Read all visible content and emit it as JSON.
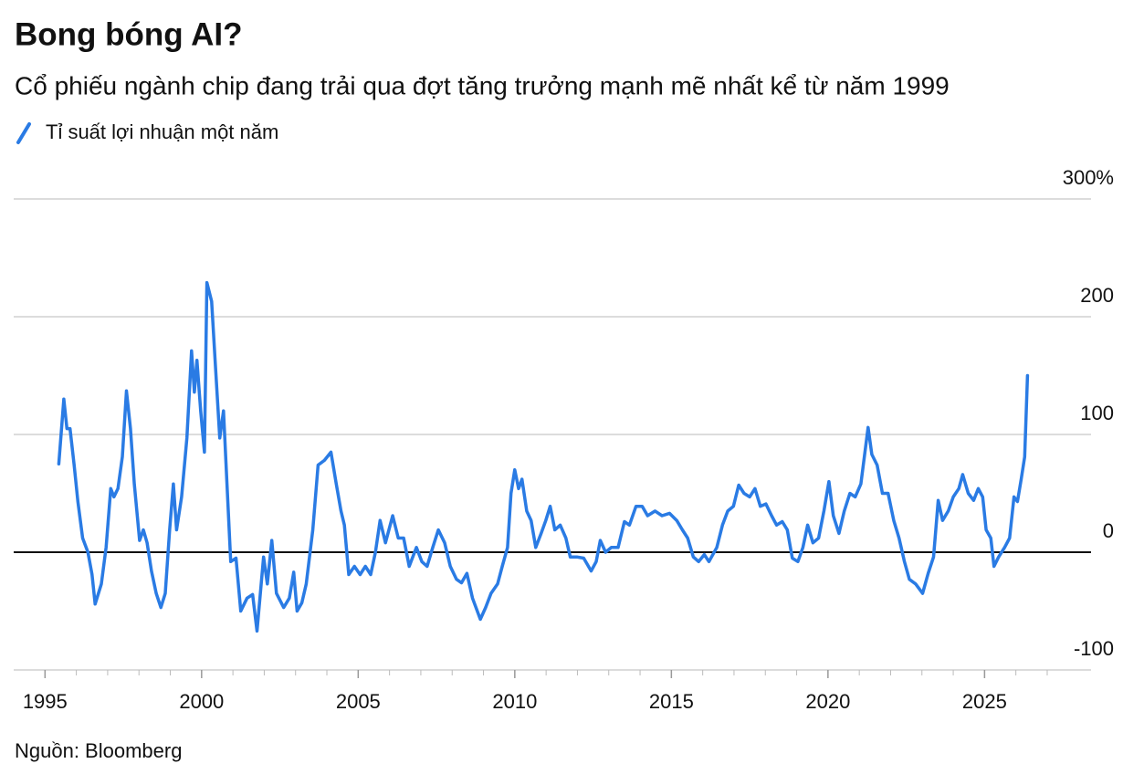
{
  "chart_data": {
    "type": "line",
    "title": "Bong bóng AI?",
    "subtitle": "Cổ phiếu ngành chip đang trải qua đợt tăng trưởng mạnh mẽ nhất kể từ năm 1999",
    "source": "Nguồn: Bloomberg",
    "x": [
      1995.44,
      1995.6,
      1995.7,
      1995.8,
      1995.93,
      1996.05,
      1996.2,
      1996.37,
      1996.5,
      1996.6,
      1996.8,
      1996.95,
      1997.1,
      1997.2,
      1997.33,
      1997.47,
      1997.6,
      1997.73,
      1997.85,
      1998.02,
      1998.14,
      1998.26,
      1998.4,
      1998.55,
      1998.7,
      1998.84,
      1998.98,
      1999.1,
      1999.2,
      1999.36,
      1999.53,
      1999.68,
      1999.77,
      1999.85,
      1999.97,
      2000.09,
      2000.17,
      2000.32,
      2000.44,
      2000.58,
      2000.7,
      2000.81,
      2000.93,
      2001.1,
      2001.25,
      2001.45,
      2001.63,
      2001.77,
      2001.98,
      2002.1,
      2002.24,
      2002.39,
      2002.62,
      2002.8,
      2002.94,
      2003.05,
      2003.2,
      2003.34,
      2003.55,
      2003.72,
      2003.92,
      2004.13,
      2004.3,
      2004.45,
      2004.56,
      2004.7,
      2004.88,
      2005.06,
      2005.23,
      2005.4,
      2005.55,
      2005.7,
      2005.87,
      2006.1,
      2006.28,
      2006.45,
      2006.63,
      2006.86,
      2007.03,
      2007.2,
      2007.38,
      2007.56,
      2007.76,
      2007.94,
      2008.14,
      2008.3,
      2008.47,
      2008.65,
      2008.9,
      2009.07,
      2009.24,
      2009.45,
      2009.6,
      2009.77,
      2009.88,
      2010.0,
      2010.12,
      2010.23,
      2010.38,
      2010.52,
      2010.67,
      2010.84,
      2010.99,
      2011.13,
      2011.28,
      2011.45,
      2011.63,
      2011.77,
      2011.98,
      2012.2,
      2012.44,
      2012.6,
      2012.73,
      2012.9,
      2013.08,
      2013.3,
      2013.5,
      2013.66,
      2013.87,
      2014.07,
      2014.24,
      2014.48,
      2014.7,
      2014.94,
      2015.17,
      2015.35,
      2015.52,
      2015.7,
      2015.87,
      2016.05,
      2016.2,
      2016.45,
      2016.63,
      2016.8,
      2016.98,
      2017.15,
      2017.32,
      2017.5,
      2017.67,
      2017.84,
      2018.02,
      2018.2,
      2018.36,
      2018.54,
      2018.7,
      2018.86,
      2019.04,
      2019.2,
      2019.35,
      2019.52,
      2019.7,
      2019.87,
      2020.03,
      2020.17,
      2020.35,
      2020.52,
      2020.7,
      2020.87,
      2021.05,
      2021.16,
      2021.28,
      2021.4,
      2021.57,
      2021.74,
      2021.92,
      2022.1,
      2022.27,
      2022.44,
      2022.6,
      2022.8,
      2023.02,
      2023.2,
      2023.37,
      2023.52,
      2023.66,
      2023.84,
      2024.0,
      2024.18,
      2024.3,
      2024.48,
      2024.65,
      2024.8,
      2024.94,
      2025.05,
      2025.2,
      2025.3,
      2025.45,
      2025.64,
      2025.8,
      2025.94,
      2026.05,
      2026.17,
      2026.28,
      2026.37
    ],
    "series": [
      {
        "name": "Tỉ suất lợi nhuận một năm",
        "color": "#2a7be4",
        "values": [
          75,
          130,
          105,
          105,
          74,
          43,
          12,
          0,
          -19,
          -44,
          -27,
          4,
          54,
          47,
          54,
          81,
          137,
          105,
          58,
          10,
          19,
          8,
          -16,
          -35,
          -47,
          -35,
          19,
          58,
          19,
          47,
          97,
          171,
          136,
          163,
          120,
          85,
          229,
          213,
          159,
          97,
          120,
          58,
          -8,
          -5,
          -50,
          -39,
          -36,
          -67,
          -4,
          -27,
          10,
          -35,
          -47,
          -39,
          -17,
          -50,
          -43,
          -27,
          19,
          74,
          78,
          85,
          58,
          35,
          23,
          -19,
          -12,
          -19,
          -12,
          -19,
          0,
          27,
          8,
          31,
          12,
          12,
          -12,
          4,
          -8,
          -12,
          4,
          19,
          8,
          -12,
          -23,
          -26,
          -18,
          -39,
          -57,
          -47,
          -35,
          -27,
          -12,
          4,
          50,
          70,
          54,
          62,
          35,
          27,
          4,
          16,
          27,
          39,
          19,
          23,
          12,
          -4,
          -4,
          -5,
          -16,
          -8,
          10,
          0,
          4,
          4,
          26,
          23,
          39,
          39,
          31,
          35,
          31,
          33,
          27,
          19,
          12,
          -4,
          -8,
          -2,
          -8,
          4,
          23,
          35,
          39,
          57,
          50,
          47,
          54,
          39,
          41,
          31,
          23,
          26,
          19,
          -5,
          -8,
          4,
          23,
          8,
          12,
          35,
          60,
          31,
          16,
          35,
          50,
          47,
          58,
          81,
          106,
          83,
          74,
          50,
          50,
          27,
          12,
          -8,
          -23,
          -27,
          -35,
          -18,
          -4,
          44,
          27,
          35,
          47,
          54,
          66,
          50,
          44,
          54,
          47,
          19,
          12,
          -12,
          -4,
          4,
          12,
          47,
          43,
          62,
          81,
          150
        ]
      }
    ],
    "xlim": [
      1994,
      2028.4
    ],
    "xticks": [
      1995,
      2000,
      2005,
      2010,
      2015,
      2020,
      2025
    ],
    "xminorticks": [
      1996,
      1997,
      1998,
      1999,
      2001,
      2002,
      2003,
      2004,
      2006,
      2007,
      2008,
      2009,
      2011,
      2012,
      2013,
      2014,
      2016,
      2017,
      2018,
      2019,
      2021,
      2022,
      2023,
      2024,
      2026,
      2027
    ],
    "ylim": [
      -100,
      300
    ],
    "yticks": [
      {
        "value": 300,
        "label": "300%"
      },
      200,
      100,
      0,
      -100
    ],
    "grid": true
  }
}
